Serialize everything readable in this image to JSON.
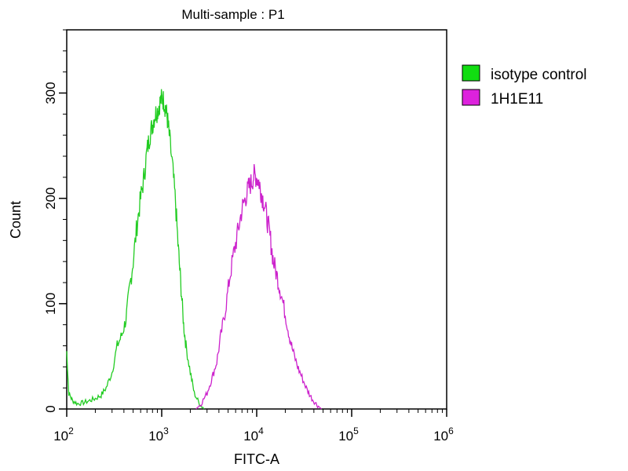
{
  "chart_data": {
    "type": "line",
    "title": "Multi-sample : P1",
    "xlabel": "FITC-A",
    "ylabel": "Count",
    "x_scale": "log",
    "xlim": [
      100,
      1000000
    ],
    "ylim": [
      0,
      360
    ],
    "grid": false,
    "legend_position": "right",
    "x_ticks": [
      {
        "value": 100,
        "base": "10",
        "exp": "2"
      },
      {
        "value": 1000,
        "base": "10",
        "exp": "3"
      },
      {
        "value": 10000,
        "base": "10",
        "exp": "4"
      },
      {
        "value": 100000,
        "base": "10",
        "exp": "5"
      },
      {
        "value": 1000000,
        "base": "10",
        "exp": "6"
      }
    ],
    "y_ticks": [
      {
        "value": 0,
        "label": "0"
      },
      {
        "value": 100,
        "label": "100"
      },
      {
        "value": 200,
        "label": "200"
      },
      {
        "value": 300,
        "label": "300"
      }
    ],
    "series": [
      {
        "name": "isotype control",
        "color": "#22cc22",
        "legend_color": "#11dd11",
        "x": [
          100,
          105,
          115,
          130,
          150,
          175,
          200,
          230,
          260,
          300,
          340,
          380,
          420,
          460,
          500,
          550,
          600,
          650,
          700,
          750,
          800,
          850,
          900,
          950,
          1000,
          1050,
          1100,
          1150,
          1200,
          1300,
          1400,
          1500,
          1600,
          1700,
          1800,
          2000,
          2200,
          2500,
          2800
        ],
        "y": [
          55,
          15,
          8,
          5,
          6,
          8,
          10,
          13,
          20,
          35,
          60,
          70,
          85,
          115,
          140,
          175,
          200,
          220,
          245,
          260,
          270,
          280,
          283,
          290,
          295,
          293,
          285,
          275,
          260,
          230,
          195,
          150,
          115,
          80,
          60,
          35,
          15,
          5,
          0
        ]
      },
      {
        "name": "1H1E11",
        "color": "#cc22cc",
        "legend_color": "#dd22dd",
        "x": [
          2300,
          2600,
          3000,
          3400,
          3800,
          4200,
          4700,
          5200,
          5800,
          6400,
          7000,
          7600,
          8200,
          8800,
          9400,
          10000,
          10600,
          11200,
          12000,
          13000,
          14000,
          15000,
          16500,
          18000,
          20000,
          22000,
          24000,
          27000,
          30000,
          34000,
          38000,
          43000,
          48000
        ],
        "y": [
          0,
          5,
          15,
          30,
          45,
          70,
          95,
          125,
          150,
          170,
          190,
          200,
          210,
          215,
          222,
          220,
          215,
          205,
          195,
          178,
          160,
          140,
          125,
          110,
          90,
          70,
          55,
          40,
          30,
          18,
          10,
          4,
          0
        ]
      }
    ]
  }
}
